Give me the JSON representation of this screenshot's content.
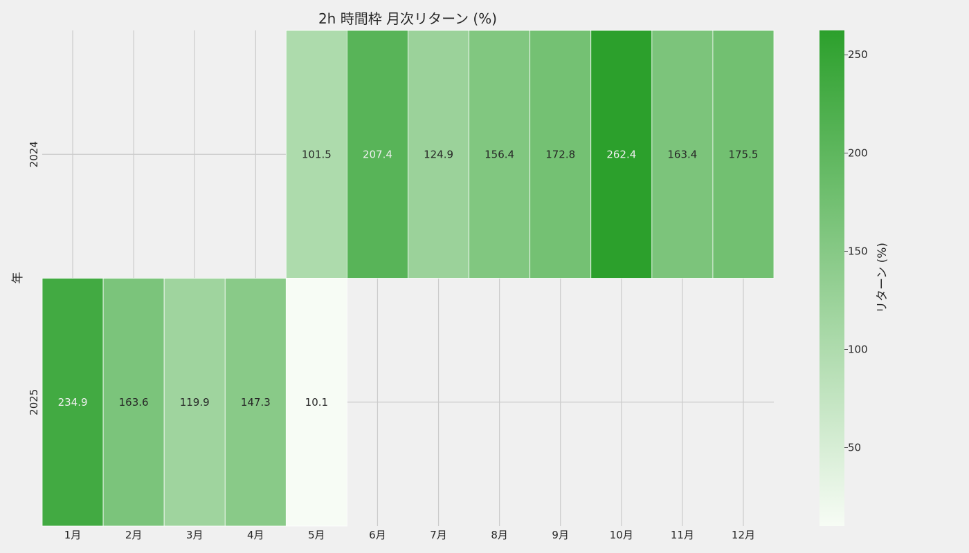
{
  "chart_data": {
    "type": "heatmap",
    "title": "2h 時間枠 月次リターン (%)",
    "xlabel": "",
    "ylabel": "年",
    "x_categories": [
      "1月",
      "2月",
      "3月",
      "4月",
      "5月",
      "6月",
      "7月",
      "8月",
      "9月",
      "10月",
      "11月",
      "12月"
    ],
    "y_categories": [
      "2024",
      "2025"
    ],
    "values": [
      [
        null,
        null,
        null,
        null,
        101.5,
        207.4,
        124.9,
        156.4,
        172.8,
        262.4,
        163.4,
        175.5
      ],
      [
        234.9,
        163.6,
        119.9,
        147.3,
        10.1,
        null,
        null,
        null,
        null,
        null,
        null,
        null
      ]
    ],
    "value_labels": [
      [
        "",
        "",
        "",
        "",
        "101.5",
        "207.4",
        "124.9",
        "156.4",
        "172.8",
        "262.4",
        "163.4",
        "175.5"
      ],
      [
        "234.9",
        "163.6",
        "119.9",
        "147.3",
        "10.1",
        "",
        "",
        "",
        "",
        "",
        "",
        ""
      ]
    ],
    "colorbar": {
      "label": "リターン (%)",
      "min": 10.1,
      "max": 262.4,
      "ticks": [
        50,
        100,
        150,
        200,
        250
      ],
      "tick_labels": [
        "50",
        "100",
        "150",
        "200",
        "250"
      ]
    },
    "colors": {
      "low": "#f7fcf5",
      "high": "#2ca02c",
      "background": "#f0f0f0",
      "grid": "#cbcbcb",
      "text_dark": "#262626",
      "text_light": "#f0f0f0"
    },
    "grid": true
  }
}
